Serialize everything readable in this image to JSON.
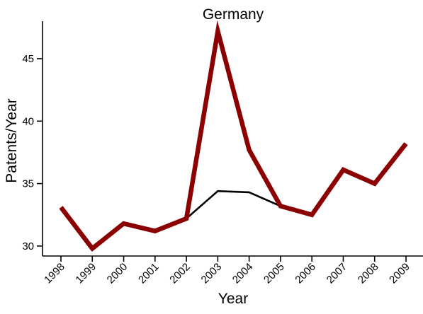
{
  "chart_data": {
    "type": "line",
    "title": "Germany",
    "xlabel": "Year",
    "ylabel": "Patents/Year",
    "x": [
      "1998",
      "1999",
      "2000",
      "2001",
      "2002",
      "2003",
      "2004",
      "2005",
      "2006",
      "2007",
      "2008",
      "2009"
    ],
    "yticks": [
      30,
      35,
      40,
      45
    ],
    "ylim": [
      29.2,
      48.0
    ],
    "grid": false,
    "legend": "none",
    "series": [
      {
        "color": "#8b0000",
        "values": [
          33.1,
          29.8,
          31.8,
          31.2,
          32.2,
          47.2,
          37.7,
          33.2,
          32.5,
          36.1,
          35.0,
          38.2
        ]
      },
      {
        "color": "#000000",
        "values": [
          null,
          null,
          null,
          null,
          32.2,
          34.4,
          34.3,
          33.2,
          null,
          null,
          null,
          null
        ]
      }
    ]
  }
}
